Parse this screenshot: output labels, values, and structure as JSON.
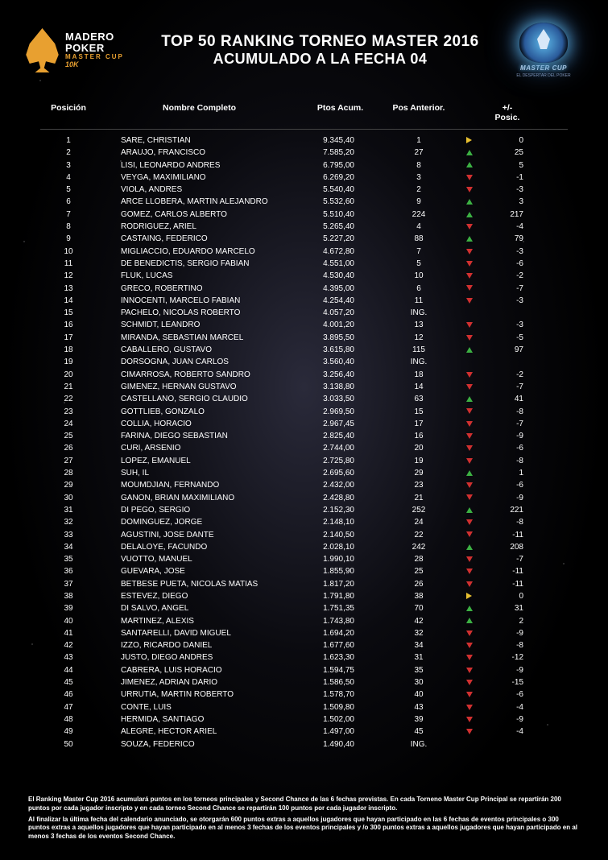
{
  "header": {
    "logo_left": {
      "line1": "MADERO",
      "line2": "POKER",
      "line3": "MASTER CUP",
      "line4": "10K"
    },
    "title_line1": "TOP 50 RANKING TORNEO MASTER 2016",
    "title_line2": "ACUMULADO A LA FECHA 04",
    "logo_right": {
      "line1": "MASTER",
      "line2": "CUP",
      "sub": "EL DESPERTAR DEL POKER"
    }
  },
  "columns": {
    "pos": "Posición",
    "name": "Nombre Completo",
    "pts": "Ptos Acum.",
    "prev": "Pos Anterior.",
    "delta": "+/-\nPosic."
  },
  "rows": [
    {
      "pos": "1",
      "name": "SARE, CHRISTIAN",
      "pts": "9.345,40",
      "prev": "1",
      "dir": "same",
      "delta": "0"
    },
    {
      "pos": "2",
      "name": "ARAUJO, FRANCISCO",
      "pts": "7.585,20",
      "prev": "27",
      "dir": "up",
      "delta": "25"
    },
    {
      "pos": "3",
      "name": "LISI, LEONARDO ANDRES",
      "pts": "6.795,00",
      "prev": "8",
      "dir": "up",
      "delta": "5"
    },
    {
      "pos": "4",
      "name": "VEYGA, MAXIMILIANO",
      "pts": "6.269,20",
      "prev": "3",
      "dir": "down",
      "delta": "-1"
    },
    {
      "pos": "5",
      "name": "VIOLA, ANDRES",
      "pts": "5.540,40",
      "prev": "2",
      "dir": "down",
      "delta": "-3"
    },
    {
      "pos": "6",
      "name": "ARCE LLOBERA, MARTIN ALEJANDRO",
      "pts": "5.532,60",
      "prev": "9",
      "dir": "up",
      "delta": "3"
    },
    {
      "pos": "7",
      "name": "GOMEZ, CARLOS ALBERTO",
      "pts": "5.510,40",
      "prev": "224",
      "dir": "up",
      "delta": "217"
    },
    {
      "pos": "8",
      "name": "RODRIGUEZ, ARIEL",
      "pts": "5.265,40",
      "prev": "4",
      "dir": "down",
      "delta": "-4"
    },
    {
      "pos": "9",
      "name": "CASTAING, FEDERICO",
      "pts": "5.227,20",
      "prev": "88",
      "dir": "up",
      "delta": "79"
    },
    {
      "pos": "10",
      "name": "MIGLIACCIO, EDUARDO MARCELO",
      "pts": "4.672,80",
      "prev": "7",
      "dir": "down",
      "delta": "-3"
    },
    {
      "pos": "11",
      "name": "DE BENEDICTIS, SERGIO FABIAN",
      "pts": "4.551,00",
      "prev": "5",
      "dir": "down",
      "delta": "-6"
    },
    {
      "pos": "12",
      "name": "FLUK, LUCAS",
      "pts": "4.530,40",
      "prev": "10",
      "dir": "down",
      "delta": "-2"
    },
    {
      "pos": "13",
      "name": "GRECO, ROBERTINO",
      "pts": "4.395,00",
      "prev": "6",
      "dir": "down",
      "delta": "-7"
    },
    {
      "pos": "14",
      "name": "INNOCENTI, MARCELO FABIAN",
      "pts": "4.254,40",
      "prev": "11",
      "dir": "down",
      "delta": "-3"
    },
    {
      "pos": "15",
      "name": "PACHELO, NICOLAS ROBERTO",
      "pts": "4.057,20",
      "prev": "ING.",
      "dir": "none",
      "delta": ""
    },
    {
      "pos": "16",
      "name": "SCHMIDT, LEANDRO",
      "pts": "4.001,20",
      "prev": "13",
      "dir": "down",
      "delta": "-3"
    },
    {
      "pos": "17",
      "name": "MIRANDA, SEBASTIAN MARCEL",
      "pts": "3.895,50",
      "prev": "12",
      "dir": "down",
      "delta": "-5"
    },
    {
      "pos": "18",
      "name": "CABALLERO, GUSTAVO",
      "pts": "3.615,80",
      "prev": "115",
      "dir": "up",
      "delta": "97"
    },
    {
      "pos": "19",
      "name": "DORSOGNA, JUAN CARLOS",
      "pts": "3.560,40",
      "prev": "ING.",
      "dir": "none",
      "delta": ""
    },
    {
      "pos": "20",
      "name": "CIMARROSA, ROBERTO SANDRO",
      "pts": "3.256,40",
      "prev": "18",
      "dir": "down",
      "delta": "-2"
    },
    {
      "pos": "21",
      "name": "GIMENEZ, HERNAN GUSTAVO",
      "pts": "3.138,80",
      "prev": "14",
      "dir": "down",
      "delta": "-7"
    },
    {
      "pos": "22",
      "name": "CASTELLANO, SERGIO CLAUDIO",
      "pts": "3.033,50",
      "prev": "63",
      "dir": "up",
      "delta": "41"
    },
    {
      "pos": "23",
      "name": "GOTTLIEB, GONZALO",
      "pts": "2.969,50",
      "prev": "15",
      "dir": "down",
      "delta": "-8"
    },
    {
      "pos": "24",
      "name": "COLLIA, HORACIO",
      "pts": "2.967,45",
      "prev": "17",
      "dir": "down",
      "delta": "-7"
    },
    {
      "pos": "25",
      "name": "FARINA, DIEGO SEBASTIAN",
      "pts": "2.825,40",
      "prev": "16",
      "dir": "down",
      "delta": "-9"
    },
    {
      "pos": "26",
      "name": "CURI, ARSENIO",
      "pts": "2.744,00",
      "prev": "20",
      "dir": "down",
      "delta": "-6"
    },
    {
      "pos": "27",
      "name": "LOPEZ, EMANUEL",
      "pts": "2.725,80",
      "prev": "19",
      "dir": "down",
      "delta": "-8"
    },
    {
      "pos": "28",
      "name": "SUH, IL",
      "pts": "2.695,60",
      "prev": "29",
      "dir": "up",
      "delta": "1"
    },
    {
      "pos": "29",
      "name": "MOUMDJIAN, FERNANDO",
      "pts": "2.432,00",
      "prev": "23",
      "dir": "down",
      "delta": "-6"
    },
    {
      "pos": "30",
      "name": "GANON, BRIAN MAXIMILIANO",
      "pts": "2.428,80",
      "prev": "21",
      "dir": "down",
      "delta": "-9"
    },
    {
      "pos": "31",
      "name": "DI PEGO, SERGIO",
      "pts": "2.152,30",
      "prev": "252",
      "dir": "up",
      "delta": "221"
    },
    {
      "pos": "32",
      "name": "DOMINGUEZ, JORGE",
      "pts": "2.148,10",
      "prev": "24",
      "dir": "down",
      "delta": "-8"
    },
    {
      "pos": "33",
      "name": "AGUSTINI, JOSE DANTE",
      "pts": "2.140,50",
      "prev": "22",
      "dir": "down",
      "delta": "-11"
    },
    {
      "pos": "34",
      "name": "DELALOYE, FACUNDO",
      "pts": "2.028,10",
      "prev": "242",
      "dir": "up",
      "delta": "208"
    },
    {
      "pos": "35",
      "name": "VUOTTO, MANUEL",
      "pts": "1.990,10",
      "prev": "28",
      "dir": "down",
      "delta": "-7"
    },
    {
      "pos": "36",
      "name": "GUEVARA, JOSE",
      "pts": "1.855,90",
      "prev": "25",
      "dir": "down",
      "delta": "-11"
    },
    {
      "pos": "37",
      "name": "BETBESE PUETA, NICOLAS MATIAS",
      "pts": "1.817,20",
      "prev": "26",
      "dir": "down",
      "delta": "-11"
    },
    {
      "pos": "38",
      "name": "ESTEVEZ, DIEGO",
      "pts": "1.791,80",
      "prev": "38",
      "dir": "same",
      "delta": "0"
    },
    {
      "pos": "39",
      "name": "DI SALVO, ANGEL",
      "pts": "1.751,35",
      "prev": "70",
      "dir": "up",
      "delta": "31"
    },
    {
      "pos": "40",
      "name": "MARTINEZ, ALEXIS",
      "pts": "1.743,80",
      "prev": "42",
      "dir": "up",
      "delta": "2"
    },
    {
      "pos": "41",
      "name": "SANTARELLI, DAVID MIGUEL",
      "pts": "1.694,20",
      "prev": "32",
      "dir": "down",
      "delta": "-9"
    },
    {
      "pos": "42",
      "name": "IZZO, RICARDO DANIEL",
      "pts": "1.677,60",
      "prev": "34",
      "dir": "down",
      "delta": "-8"
    },
    {
      "pos": "43",
      "name": "JUSTO, DIEGO ANDRES",
      "pts": "1.623,30",
      "prev": "31",
      "dir": "down",
      "delta": "-12"
    },
    {
      "pos": "44",
      "name": "CABRERA, LUIS HORACIO",
      "pts": "1.594,75",
      "prev": "35",
      "dir": "down",
      "delta": "-9"
    },
    {
      "pos": "45",
      "name": "JIMENEZ, ADRIAN DARIO",
      "pts": "1.586,50",
      "prev": "30",
      "dir": "down",
      "delta": "-15"
    },
    {
      "pos": "46",
      "name": "URRUTIA, MARTIN ROBERTO",
      "pts": "1.578,70",
      "prev": "40",
      "dir": "down",
      "delta": "-6"
    },
    {
      "pos": "47",
      "name": "CONTE, LUIS",
      "pts": "1.509,80",
      "prev": "43",
      "dir": "down",
      "delta": "-4"
    },
    {
      "pos": "48",
      "name": "HERMIDA, SANTIAGO",
      "pts": "1.502,00",
      "prev": "39",
      "dir": "down",
      "delta": "-9"
    },
    {
      "pos": "49",
      "name": "ALEGRE, HECTOR ARIEL",
      "pts": "1.497,00",
      "prev": "45",
      "dir": "down",
      "delta": "-4"
    },
    {
      "pos": "50",
      "name": "SOUZA, FEDERICO",
      "pts": "1.490,40",
      "prev": "ING.",
      "dir": "none",
      "delta": ""
    }
  ],
  "footer": {
    "p1": "El Ranking Master Cup 2016 acumulará puntos en los torneos principales y Second Chance de las 6 fechas previstas. En cada Torneno Master Cup Principal se repartirán 200 puntos por cada jugador inscripto y en cada torneo Second Chance se repartirán 100 puntos por cada jugador inscripto.",
    "p2": "Al finalizar la última fecha del calendario anunciado, se otorgarán 600 puntos extras a aquellos jugadores que hayan participado en las 6 fechas de eventos principales o 300 puntos extras a aquellos jugadores que hayan participado en al menos 3 fechas de los eventos principales y /o 300 puntos extras a aquellos jugadores que hayan participado en al menos 3 fechas de los eventos Second Chance."
  },
  "colors": {
    "bg": "#000000",
    "text": "#ffffff",
    "accent": "#e8a030",
    "up": "#3cb043",
    "down": "#d03030",
    "same": "#e8c030"
  }
}
